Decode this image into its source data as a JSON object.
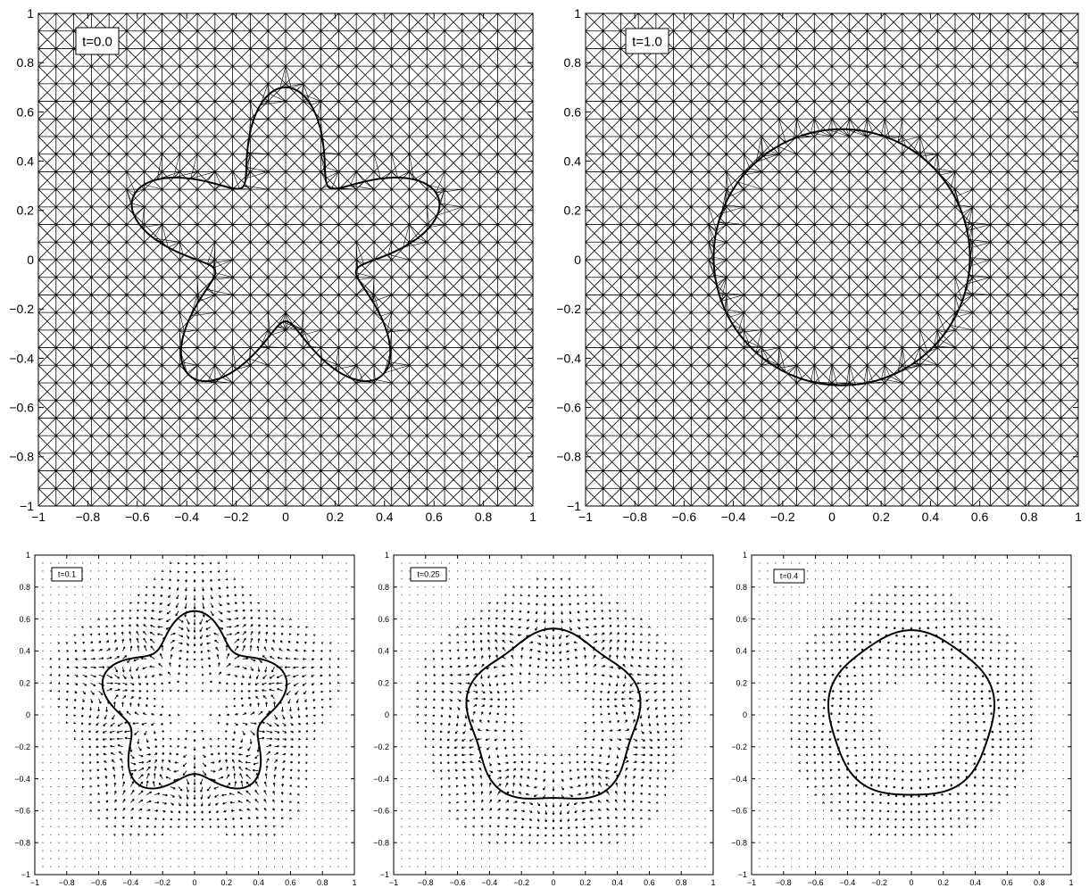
{
  "chart_data": [
    {
      "id": "mesh-t0",
      "type": "mesh",
      "label": "t=0.0",
      "xlim": [
        -1,
        1
      ],
      "ylim": [
        -1,
        1
      ],
      "x_ticks": [
        -1,
        -0.8,
        -0.6,
        -0.4,
        -0.2,
        0,
        0.2,
        0.4,
        0.6,
        0.8,
        1
      ],
      "y_ticks": [
        -1,
        -0.8,
        -0.6,
        -0.4,
        -0.2,
        0,
        0.2,
        0.4,
        0.6,
        0.8,
        1
      ],
      "x_tick_labels": [
        "−1",
        "−0.8",
        "−0.6",
        "−0.4",
        "−0.2",
        "0",
        "0.2",
        "0.4",
        "0.6",
        "0.8",
        "1"
      ],
      "y_tick_labels": [
        "−1",
        "−0.8",
        "−0.6",
        "−0.4",
        "−0.2",
        "0",
        "0.2",
        "0.4",
        "0.6",
        "0.8",
        "1"
      ],
      "grid_divisions": 28,
      "interface": {
        "shape": "five-lobed star",
        "lobes": 5,
        "center": [
          0,
          0.05
        ],
        "radius_min": 0.3,
        "radius_max": 0.65
      }
    },
    {
      "id": "mesh-t1",
      "type": "mesh",
      "label": "t=1.0",
      "xlim": [
        -1,
        1
      ],
      "ylim": [
        -1,
        1
      ],
      "x_ticks": [
        -1,
        -0.8,
        -0.6,
        -0.4,
        -0.2,
        0,
        0.2,
        0.4,
        0.6,
        0.8,
        1
      ],
      "y_ticks": [
        -1,
        -0.8,
        -0.6,
        -0.4,
        -0.2,
        0,
        0.2,
        0.4,
        0.6,
        0.8,
        1
      ],
      "x_tick_labels": [
        "−1",
        "−0.8",
        "−0.6",
        "−0.4",
        "−0.2",
        "0",
        "0.2",
        "0.4",
        "0.6",
        "0.8",
        "1"
      ],
      "y_tick_labels": [
        "−1",
        "−0.8",
        "−0.6",
        "−0.4",
        "−0.2",
        "0",
        "0.2",
        "0.4",
        "0.6",
        "0.8",
        "1"
      ],
      "grid_divisions": 28,
      "interface": {
        "shape": "circle",
        "center": [
          0.04,
          0.01
        ],
        "radius": 0.52
      }
    },
    {
      "id": "field-t01",
      "type": "quiver",
      "label": "t=0.1",
      "xlim": [
        -1,
        1
      ],
      "ylim": [
        -1,
        1
      ],
      "x_ticks": [
        -1,
        -0.8,
        -0.6,
        -0.4,
        -0.2,
        0,
        0.2,
        0.4,
        0.6,
        0.8,
        1
      ],
      "y_ticks": [
        -1,
        -0.8,
        -0.6,
        -0.4,
        -0.2,
        0,
        0.2,
        0.4,
        0.6,
        0.8,
        1
      ],
      "x_tick_labels": [
        "−1",
        "−0.8",
        "−0.6",
        "−0.4",
        "−0.2",
        "0",
        "0.2",
        "0.4",
        "0.6",
        "0.8",
        "1"
      ],
      "y_tick_labels": [
        "−1",
        "−0.8",
        "−0.6",
        "−0.4",
        "−0.2",
        "0",
        "0.2",
        "0.4",
        "0.6",
        "0.8",
        "1"
      ],
      "grid_divisions": 40,
      "interface": {
        "shape": "five-lobed star",
        "lobes": 5,
        "center": [
          0,
          0.05
        ],
        "radius_min": 0.42,
        "radius_max": 0.6
      }
    },
    {
      "id": "field-t025",
      "type": "quiver",
      "label": "t=0.25",
      "xlim": [
        -1,
        1
      ],
      "ylim": [
        -1,
        1
      ],
      "x_ticks": [
        -1,
        -0.8,
        -0.6,
        -0.4,
        -0.2,
        0,
        0.2,
        0.4,
        0.6,
        0.8,
        1
      ],
      "y_ticks": [
        -1,
        -0.8,
        -0.6,
        -0.4,
        -0.2,
        0,
        0.2,
        0.4,
        0.6,
        0.8,
        1
      ],
      "x_tick_labels": [
        "−1",
        "−0.8",
        "−0.6",
        "−0.4",
        "−0.2",
        "0",
        "0.2",
        "0.4",
        "0.6",
        "0.8",
        "1"
      ],
      "y_tick_labels": [
        "−1",
        "−0.8",
        "−0.6",
        "−0.4",
        "−0.2",
        "0",
        "0.2",
        "0.4",
        "0.6",
        "0.8",
        "1"
      ],
      "grid_divisions": 40,
      "interface": {
        "shape": "rounded pentagon",
        "lobes": 5,
        "center": [
          0,
          -0.02
        ],
        "radius_min": 0.5,
        "radius_max": 0.56
      }
    },
    {
      "id": "field-t04",
      "type": "quiver",
      "label": "t=0.4",
      "xlim": [
        -1,
        1
      ],
      "ylim": [
        -1,
        1
      ],
      "x_ticks": [
        -1,
        -0.8,
        -0.6,
        -0.4,
        -0.2,
        0,
        0.2,
        0.4,
        0.6,
        0.8,
        1
      ],
      "y_ticks": [
        -1,
        -0.8,
        -0.6,
        -0.4,
        -0.2,
        0,
        0.2,
        0.4,
        0.6,
        0.8,
        1
      ],
      "x_tick_labels": [
        "−1",
        "−0.8",
        "−0.6",
        "−0.4",
        "−0.2",
        "0",
        "0.2",
        "0.4",
        "0.6",
        "0.8",
        "1"
      ],
      "y_tick_labels": [
        "−1",
        "−0.8",
        "−0.6",
        "−0.4",
        "−0.2",
        "0",
        "0.2",
        "0.4",
        "0.6",
        "0.8",
        "1"
      ],
      "grid_divisions": 40,
      "interface": {
        "shape": "near circle",
        "lobes": 5,
        "center": [
          0,
          0
        ],
        "radius_min": 0.5,
        "radius_max": 0.53
      }
    }
  ]
}
